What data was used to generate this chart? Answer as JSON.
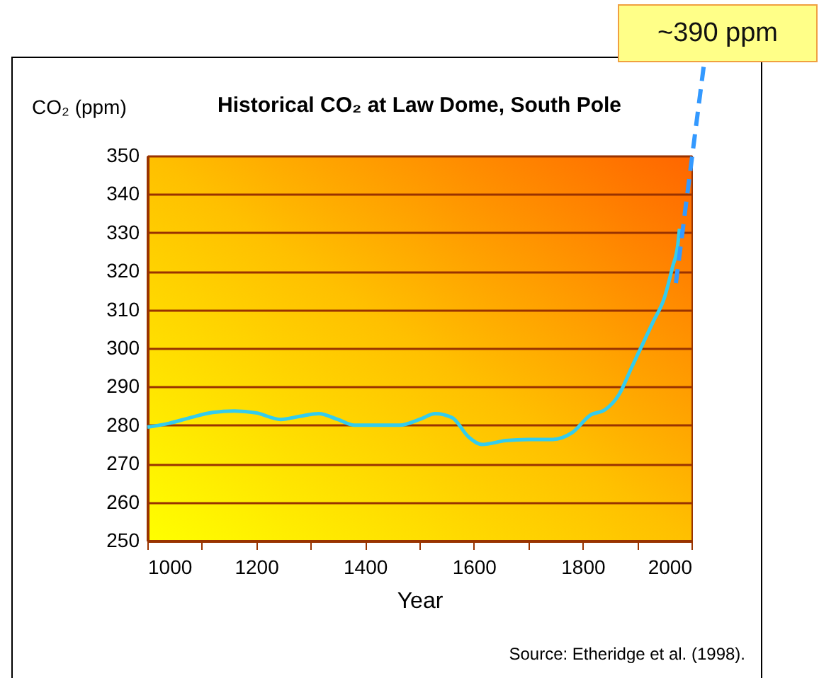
{
  "chart_data": {
    "type": "line",
    "title": "Historical CO₂ at Law Dome, South Pole",
    "xlabel": "Year",
    "ylabel": "CO₂ (ppm)",
    "annotations": [
      "~390 ppm",
      "Source: Etheridge et al. (1998)."
    ],
    "x": [
      1000,
      1040,
      1080,
      1120,
      1160,
      1200,
      1245,
      1280,
      1315,
      1350,
      1380,
      1420,
      1464,
      1500,
      1529,
      1560,
      1590,
      1615,
      1659,
      1700,
      1745,
      1780,
      1815,
      1841,
      1867,
      1890,
      1910,
      1930,
      1950,
      1965,
      1975,
      1978
    ],
    "series": [
      {
        "color": "#33ccee",
        "values": [
          279.5,
          280.5,
          282,
          283.3,
          283.7,
          283.2,
          281.5,
          282.3,
          283,
          281.5,
          280,
          280,
          280,
          281.5,
          283,
          282,
          277,
          275,
          276,
          276.3,
          276.3,
          278,
          282.7,
          284,
          288,
          295,
          301,
          307,
          313,
          321,
          327,
          331
        ]
      }
    ],
    "xlim": [
      1000,
      2000
    ],
    "ylim": [
      250,
      350
    ],
    "xticks": [
      1000,
      {
        "value": 1100,
        "label": null
      },
      1200,
      {
        "value": 1300,
        "label": null
      },
      1400,
      {
        "value": 1500,
        "label": null
      },
      1600,
      {
        "value": 1700,
        "label": null
      },
      1800,
      {
        "value": 1900,
        "label": null
      },
      2000
    ],
    "yticks": [
      250,
      260,
      270,
      280,
      290,
      300,
      310,
      320,
      330,
      340,
      350
    ],
    "grid": "y",
    "marker": "none",
    "line_style": "solid"
  }
}
